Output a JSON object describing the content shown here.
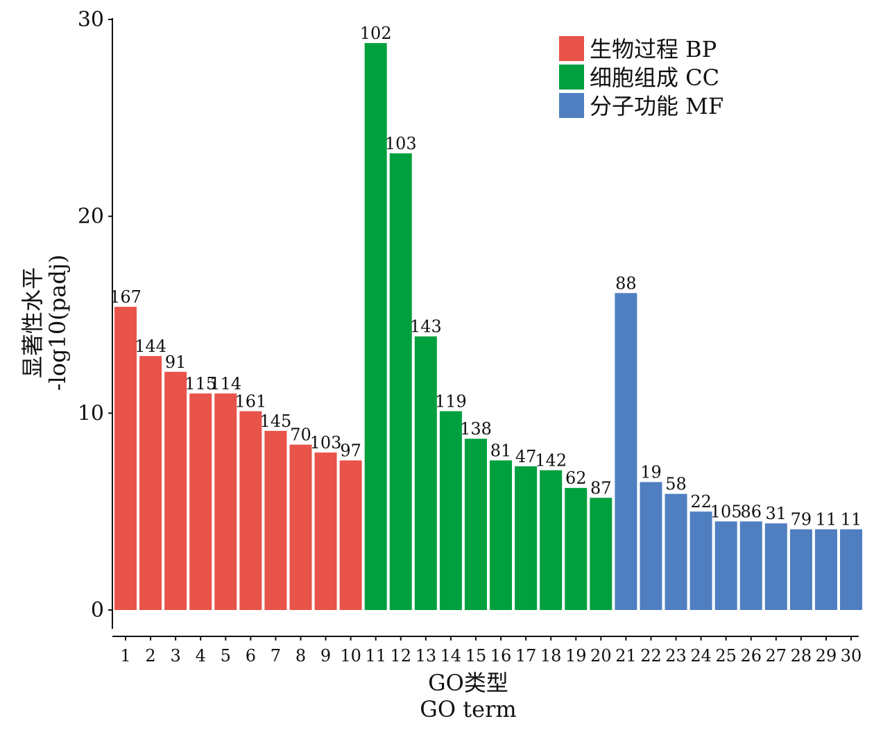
{
  "chart_data": {
    "type": "bar",
    "title": "",
    "xlabel": [
      "GO类型",
      "GO term"
    ],
    "ylabel": [
      "显著性水平",
      "-log10(padj)"
    ],
    "ylim": [
      0,
      30
    ],
    "yticks": [
      0,
      10,
      20,
      30
    ],
    "legend_position": "top-right",
    "legend": [
      {
        "label": "生物过程 BP",
        "color": "#E8534A"
      },
      {
        "label": "细胞组成 CC",
        "color": "#00A03E"
      },
      {
        "label": "分子功能 MF",
        "color": "#4F7FC1"
      }
    ],
    "categories": [
      "1",
      "2",
      "3",
      "4",
      "5",
      "6",
      "7",
      "8",
      "9",
      "10",
      "11",
      "12",
      "13",
      "14",
      "15",
      "16",
      "17",
      "18",
      "19",
      "20",
      "21",
      "22",
      "23",
      "24",
      "25",
      "26",
      "27",
      "28",
      "29",
      "30"
    ],
    "groups": [
      0,
      0,
      0,
      0,
      0,
      0,
      0,
      0,
      0,
      0,
      1,
      1,
      1,
      1,
      1,
      1,
      1,
      1,
      1,
      1,
      2,
      2,
      2,
      2,
      2,
      2,
      2,
      2,
      2,
      2
    ],
    "values": [
      15.4,
      12.9,
      12.1,
      11.0,
      11.0,
      10.1,
      9.1,
      8.4,
      8.0,
      7.6,
      28.8,
      23.2,
      13.9,
      10.1,
      8.7,
      7.6,
      7.3,
      7.1,
      6.2,
      5.7,
      16.1,
      6.5,
      5.9,
      5.0,
      4.5,
      4.5,
      4.4,
      4.1,
      4.1,
      4.1
    ],
    "labels": [
      "167",
      "144",
      "91",
      "115",
      "114",
      "161",
      "145",
      "70",
      "103",
      "97",
      "102",
      "103",
      "143",
      "119",
      "138",
      "81",
      "47",
      "142",
      "62",
      "87",
      "88",
      "19",
      "58",
      "22",
      "105",
      "86",
      "31",
      "79",
      "11",
      "11"
    ]
  }
}
